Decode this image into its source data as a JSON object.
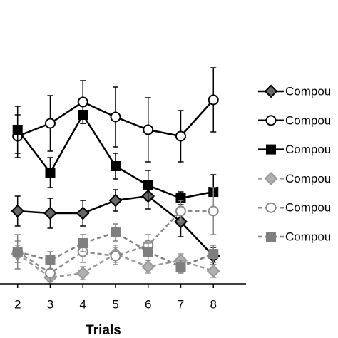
{
  "chart_data": {
    "type": "line",
    "x_label": "Trials",
    "x": [
      2,
      3,
      4,
      5,
      6,
      7,
      8
    ],
    "xlim": [
      1.46,
      9
    ],
    "xticks": [
      2,
      3,
      4,
      5,
      6,
      7,
      8
    ],
    "ylim": [
      0,
      130
    ],
    "legend": "right",
    "series": [
      {
        "name": "Compou",
        "color": "#000000",
        "fill": "#666666",
        "marker": "diamond",
        "dashed": false,
        "values": [
          34,
          33,
          33,
          39,
          41,
          29,
          13
        ],
        "errors": [
          7,
          7,
          6,
          5,
          6,
          7,
          4
        ]
      },
      {
        "name": "Compou",
        "color": "#000000",
        "fill": "#ffffff",
        "marker": "circle",
        "dashed": false,
        "values": [
          69,
          75,
          85,
          78,
          72,
          69,
          86
        ],
        "errors": [
          10,
          13,
          10,
          14,
          15,
          12,
          15
        ]
      },
      {
        "name": "Compou",
        "color": "#000000",
        "fill": "#000000",
        "marker": "square",
        "dashed": false,
        "values": [
          72,
          52,
          79,
          55,
          46,
          40,
          43
        ],
        "errors": [
          11,
          7,
          4,
          6,
          7,
          3,
          8
        ]
      },
      {
        "name": "Compou",
        "color": "#999999",
        "fill": "#b0b0b0",
        "marker": "diamond",
        "dashed": true,
        "values": [
          14,
          3,
          5,
          14,
          8,
          11,
          6
        ],
        "errors": [
          4,
          3,
          3,
          4,
          3,
          3,
          3
        ]
      },
      {
        "name": "Compou",
        "color": "#888888",
        "fill": "#ffffff",
        "marker": "circle",
        "dashed": true,
        "values": [
          15,
          5,
          15,
          13,
          18,
          34,
          34
        ],
        "errors": [
          5,
          4,
          5,
          4,
          5,
          5,
          11
        ]
      },
      {
        "name": "Compou",
        "color": "#7f7f7f",
        "fill": "#7f7f7f",
        "marker": "square",
        "dashed": true,
        "values": [
          15,
          11,
          19,
          24,
          15,
          8,
          14
        ],
        "errors": [
          8,
          4,
          4,
          4,
          4,
          3,
          4
        ]
      }
    ]
  }
}
